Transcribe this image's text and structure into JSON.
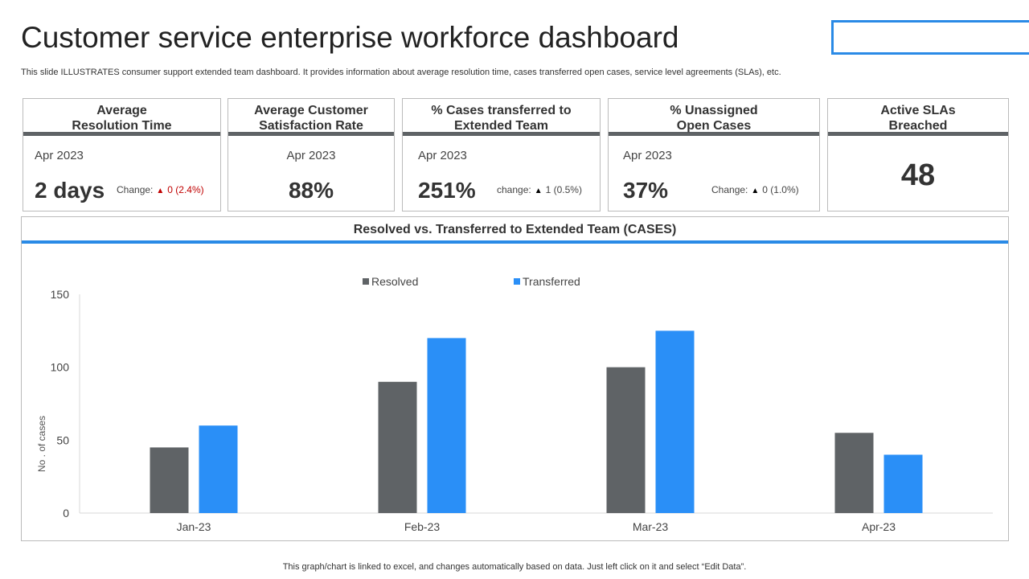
{
  "title": "Customer service enterprise workforce dashboard",
  "subtitle": "This slide ILLUSTRATES consumer support extended team dashboard. It provides information about average resolution time, cases transferred open cases, service level agreements (SLAs), etc.",
  "cards": [
    {
      "title_l1": "Average",
      "title_l2": "Resolution Time",
      "date": "Apr 2023",
      "value": "2 days",
      "change_label": "Change:",
      "change_value": "0 (2.4%)",
      "change_color": "#c00000"
    },
    {
      "title_l1": "Average Customer",
      "title_l2": "Satisfaction Rate",
      "date": "Apr 2023",
      "value": "88%"
    },
    {
      "title_l1": "% Cases transferred to",
      "title_l2": "Extended Team",
      "date": "Apr 2023",
      "value": "251%",
      "change_label": "change:",
      "change_value": "1 (0.5%)",
      "change_color": "#000000"
    },
    {
      "title_l1": "% Unassigned",
      "title_l2": "Open Cases",
      "date": "Apr 2023",
      "value": "37%",
      "change_label": "Change:",
      "change_value": "0 (1.0%)",
      "change_color": "#000000"
    },
    {
      "title_l1": "Active SLAs",
      "title_l2": "Breached",
      "value": "48"
    }
  ],
  "chart_data": {
    "type": "bar",
    "title": "Resolved vs.  Transferred to Extended Team (CASES)",
    "categories": [
      "Jan-23",
      "Feb-23",
      "Mar-23",
      "Apr-23"
    ],
    "series": [
      {
        "name": "Resolved",
        "values": [
          45,
          90,
          100,
          55
        ],
        "color": "#5f6366"
      },
      {
        "name": "Transferred",
        "values": [
          60,
          120,
          125,
          40
        ],
        "color": "#2a8ff7"
      }
    ],
    "ylabel": "No . of cases",
    "ylim": [
      0,
      150
    ],
    "yticks": [
      0,
      50,
      100,
      150
    ],
    "legend": "top",
    "grid": false
  },
  "footer": "This graph/chart is linked to excel, and changes automatically based on data. Just left click on it and select “Edit Data”."
}
